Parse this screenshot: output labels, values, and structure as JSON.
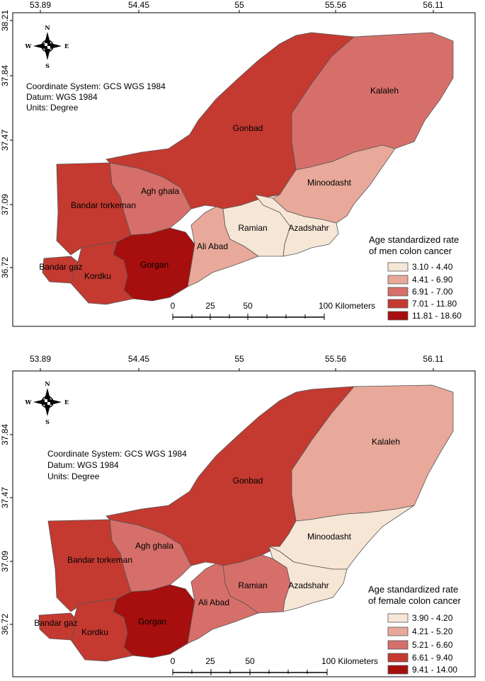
{
  "axes": {
    "x_ticks": [
      "53.89",
      "54.45",
      "55",
      "55.56",
      "56.11"
    ],
    "y_ticks_top": [
      "38.21",
      "37.84",
      "37.47",
      "37.09",
      "36.72"
    ],
    "y_ticks_bottom": [
      "37.84",
      "37.47",
      "37.09",
      "36.72"
    ]
  },
  "compass": {
    "n": "N",
    "s": "S",
    "e": "E",
    "w": "W"
  },
  "info": {
    "coord_system": "Coordinate System: GCS WGS 1984",
    "datum": "Datum: WGS 1984",
    "units": "Units: Degree"
  },
  "scalebar": {
    "t0": "0",
    "t25": "25",
    "t50": "50",
    "t100": "100 Kilometers"
  },
  "maps": [
    {
      "legend_title_1": "Age standardized rate",
      "legend_title_2": "of men colon cancer",
      "classes": [
        {
          "label": "3.10 - 4.40",
          "color": "#f6e6d6"
        },
        {
          "label": "4.41 - 6.90",
          "color": "#e8a99a"
        },
        {
          "label": "6.91 - 7.00",
          "color": "#d66f6a"
        },
        {
          "label": "7.01 - 11.80",
          "color": "#c43a30"
        },
        {
          "label": "11.81 - 18.60",
          "color": "#a70e0e"
        }
      ],
      "regions": {
        "kalaleh": {
          "name": "Kalaleh",
          "class": 2
        },
        "gonbad": {
          "name": "Gonbad",
          "class": 3
        },
        "minoodasht": {
          "name": "Minoodasht",
          "class": 1
        },
        "agh_ghala": {
          "name": "Agh ghala",
          "class": 2
        },
        "bandar_torkeman": {
          "name": "Bandar torkeman",
          "class": 3
        },
        "ramian": {
          "name": "Ramian",
          "class": 0
        },
        "azadshahr": {
          "name": "Azadshahr",
          "class": 0
        },
        "ali_abad": {
          "name": "Ali Abad",
          "class": 1
        },
        "gorgan": {
          "name": "Gorgan",
          "class": 4
        },
        "bandar_gaz": {
          "name": "Bandar gaz",
          "class": 3
        },
        "kordku": {
          "name": "Kordku",
          "class": 3
        }
      }
    },
    {
      "legend_title_1": "Age standardized rate",
      "legend_title_2": "of female colon cancer",
      "classes": [
        {
          "label": "3.90 - 4.20",
          "color": "#f6e6d6"
        },
        {
          "label": "4.21 - 5.20",
          "color": "#e8a99a"
        },
        {
          "label": "5.21 - 6.60",
          "color": "#d66f6a"
        },
        {
          "label": "6.61 - 9.40",
          "color": "#c43a30"
        },
        {
          "label": "9.41 - 14.00",
          "color": "#a70e0e"
        }
      ],
      "regions": {
        "kalaleh": {
          "name": "Kalaleh",
          "class": 1
        },
        "gonbad": {
          "name": "Gonbad",
          "class": 3
        },
        "minoodasht": {
          "name": "Minoodasht",
          "class": 0
        },
        "agh_ghala": {
          "name": "Agh ghala",
          "class": 2
        },
        "bandar_torkeman": {
          "name": "Bandar torkeman",
          "class": 3
        },
        "ramian": {
          "name": "Ramian",
          "class": 2
        },
        "azadshahr": {
          "name": "Azadshahr",
          "class": 0
        },
        "ali_abad": {
          "name": "Ali Abad",
          "class": 2
        },
        "gorgan": {
          "name": "Gorgan",
          "class": 4
        },
        "bandar_gaz": {
          "name": "Bandar gaz",
          "class": 3
        },
        "kordku": {
          "name": "Kordku",
          "class": 3
        }
      }
    }
  ]
}
